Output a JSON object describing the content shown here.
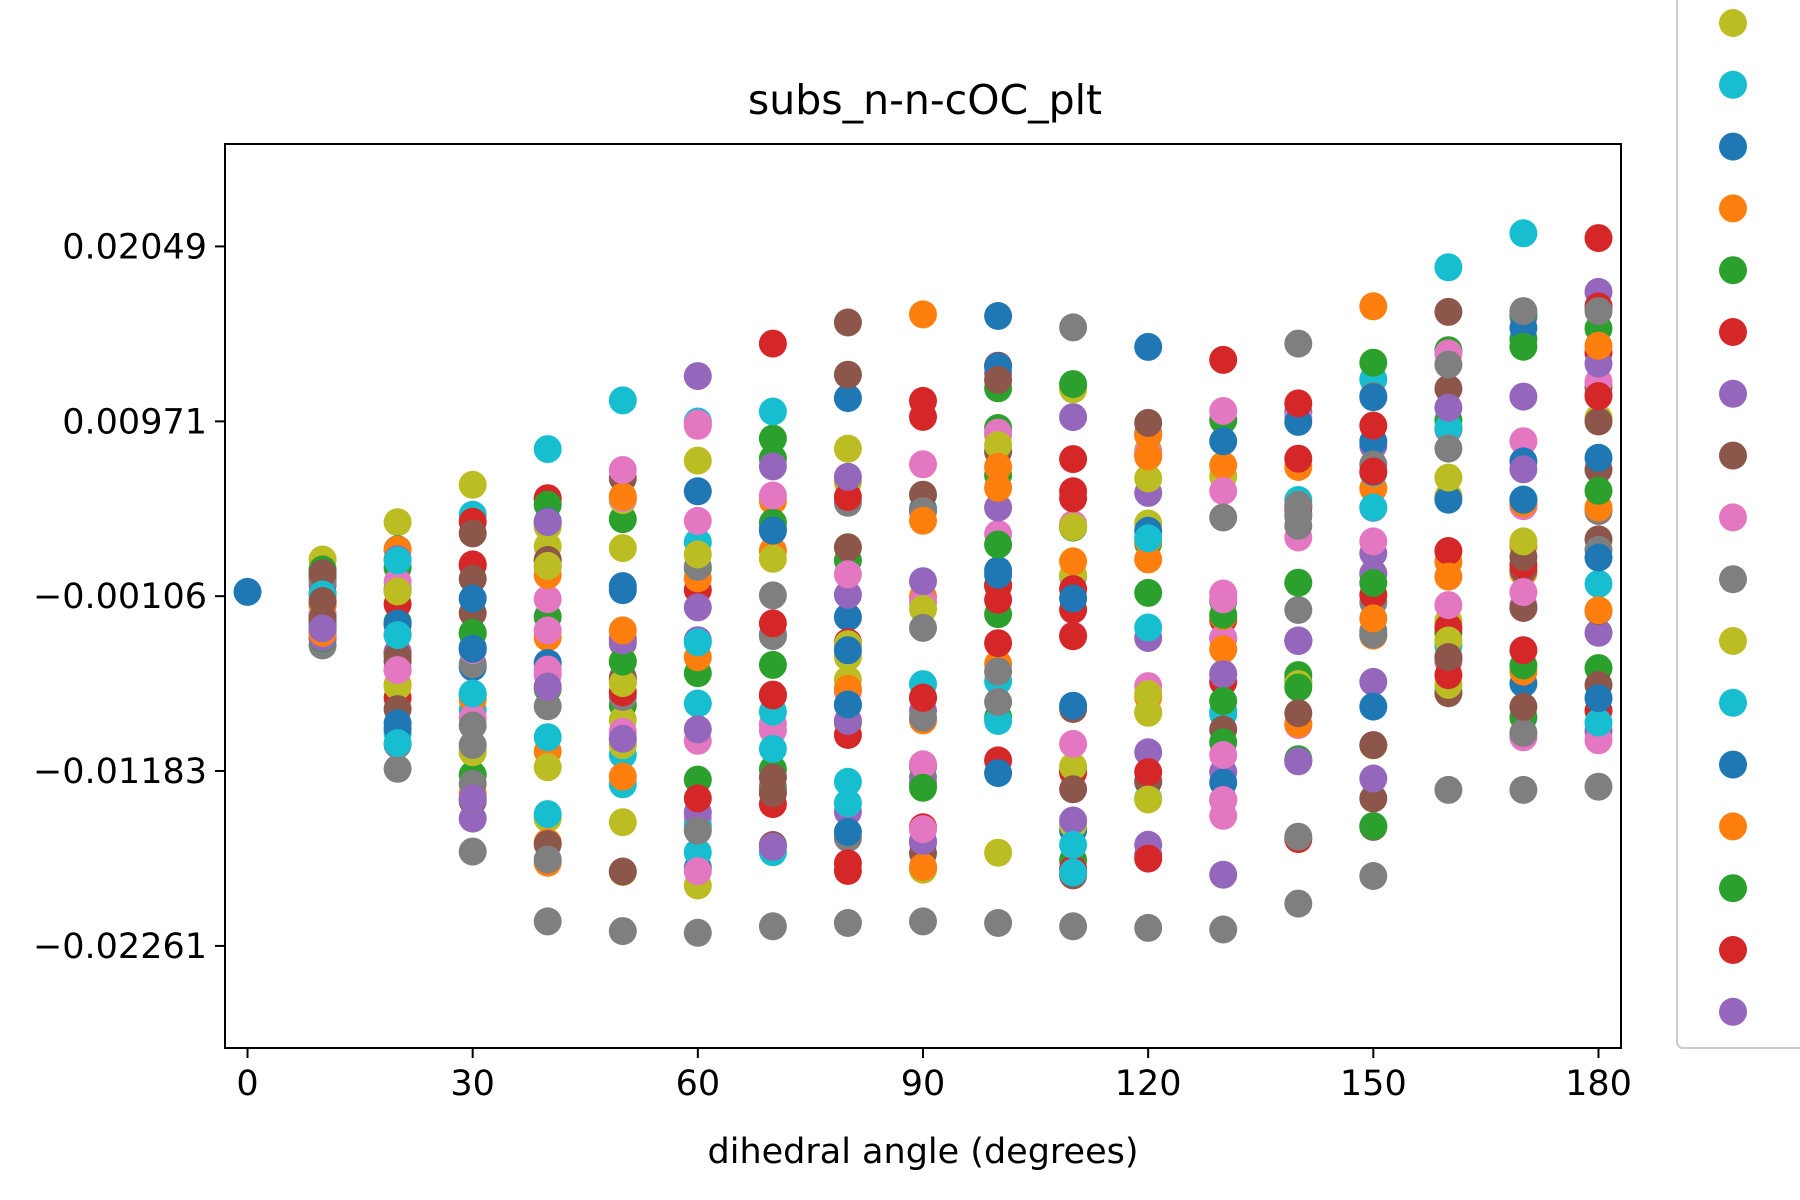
{
  "chart_data": {
    "type": "scatter",
    "title": "subs_n-n-cOC_plt",
    "xlabel": "dihedral angle (degrees)",
    "ylabel": "",
    "x_ticks": [
      "0",
      "30",
      "60",
      "90",
      "120",
      "150",
      "180"
    ],
    "y_ticks": [
      "0.02049",
      "0.00971",
      "−0.00106",
      "−0.01183",
      "−0.02261"
    ],
    "xlim": [
      -3,
      183
    ],
    "ylim": [
      -0.0289,
      0.0268
    ],
    "grid": false,
    "legend": {
      "placement": "right",
      "marker_count": 17
    },
    "x_values": [
      0,
      10,
      20,
      30,
      40,
      50,
      60,
      70,
      80,
      90,
      100,
      110,
      120,
      130,
      140,
      150,
      160,
      170,
      180
    ],
    "palette": [
      "#1f77b4",
      "#ff7f0e",
      "#2ca02c",
      "#d62728",
      "#9467bd",
      "#8c564b",
      "#e377c2",
      "#7f7f7f",
      "#bcbd22",
      "#17becf"
    ],
    "legend_colors": [
      "#bcbd22",
      "#17becf",
      "#1f77b4",
      "#ff7f0e",
      "#2ca02c",
      "#d62728",
      "#9467bd",
      "#8c564b",
      "#e377c2",
      "#7f7f7f",
      "#bcbd22",
      "#17becf",
      "#1f77b4",
      "#ff7f0e",
      "#2ca02c",
      "#d62728",
      "#9467bd"
    ],
    "column_extents": [
      {
        "x": 0,
        "max": -0.0008,
        "min": -0.0008
      },
      {
        "x": 10,
        "max": 0.0012,
        "min": -0.0041
      },
      {
        "x": 20,
        "max": 0.0035,
        "min": -0.0117
      },
      {
        "x": 30,
        "max": 0.0058,
        "min": -0.0168
      },
      {
        "x": 40,
        "max": 0.008,
        "min": -0.0211
      },
      {
        "x": 50,
        "max": 0.011,
        "min": -0.0217
      },
      {
        "x": 60,
        "max": 0.0125,
        "min": -0.0218
      },
      {
        "x": 70,
        "max": 0.0145,
        "min": -0.0214
      },
      {
        "x": 80,
        "max": 0.0158,
        "min": -0.0212
      },
      {
        "x": 90,
        "max": 0.0163,
        "min": -0.0211
      },
      {
        "x": 100,
        "max": 0.0162,
        "min": -0.0212
      },
      {
        "x": 110,
        "max": 0.0155,
        "min": -0.0214
      },
      {
        "x": 120,
        "max": 0.0143,
        "min": -0.0215
      },
      {
        "x": 130,
        "max": 0.0135,
        "min": -0.0216
      },
      {
        "x": 140,
        "max": 0.0145,
        "min": -0.02
      },
      {
        "x": 150,
        "max": 0.0168,
        "min": -0.0183
      },
      {
        "x": 160,
        "max": 0.0192,
        "min": -0.013
      },
      {
        "x": 170,
        "max": 0.0213,
        "min": -0.013
      },
      {
        "x": 180,
        "max": 0.021,
        "min": -0.0128
      }
    ],
    "points_per_column": 34
  }
}
